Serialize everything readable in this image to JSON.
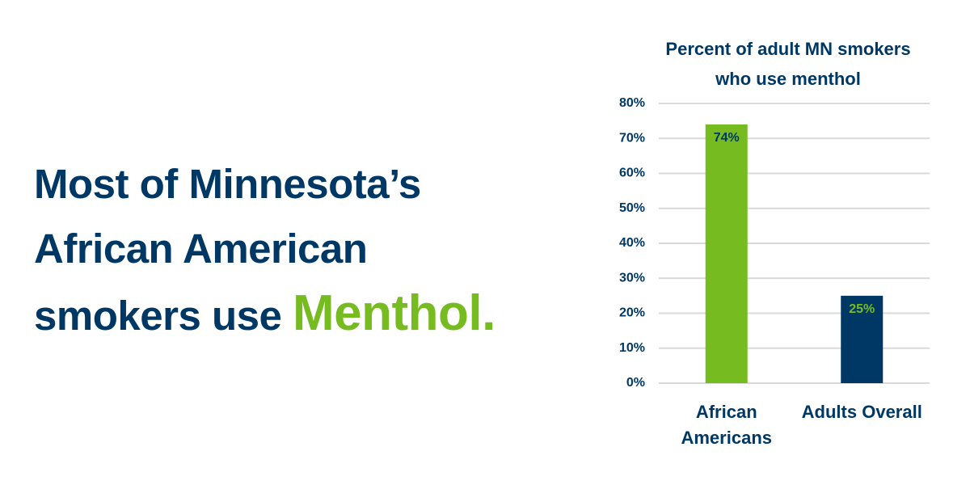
{
  "headline": {
    "text": "Most of Minnesota’s African American smokers use",
    "highlight": "Menthol."
  },
  "chart_data": {
    "type": "bar",
    "title": "Percent of adult MN smokers who use menthol",
    "categories": [
      "African Americans",
      "Adults Overall"
    ],
    "values": [
      74,
      25
    ],
    "value_labels": [
      "74%",
      "25%"
    ],
    "colors": [
      "#76bc21",
      "#003865"
    ],
    "ylim": [
      0,
      80
    ],
    "yticks": [
      {
        "value": 0,
        "label": "0%"
      },
      {
        "value": 10,
        "label": "10%"
      },
      {
        "value": 20,
        "label": "20%"
      },
      {
        "value": 30,
        "label": "30%"
      },
      {
        "value": 40,
        "label": "40%"
      },
      {
        "value": 50,
        "label": "50%"
      },
      {
        "value": 60,
        "label": "60%"
      },
      {
        "value": 70,
        "label": "70%"
      },
      {
        "value": 80,
        "label": "80%"
      }
    ],
    "grid": true
  }
}
